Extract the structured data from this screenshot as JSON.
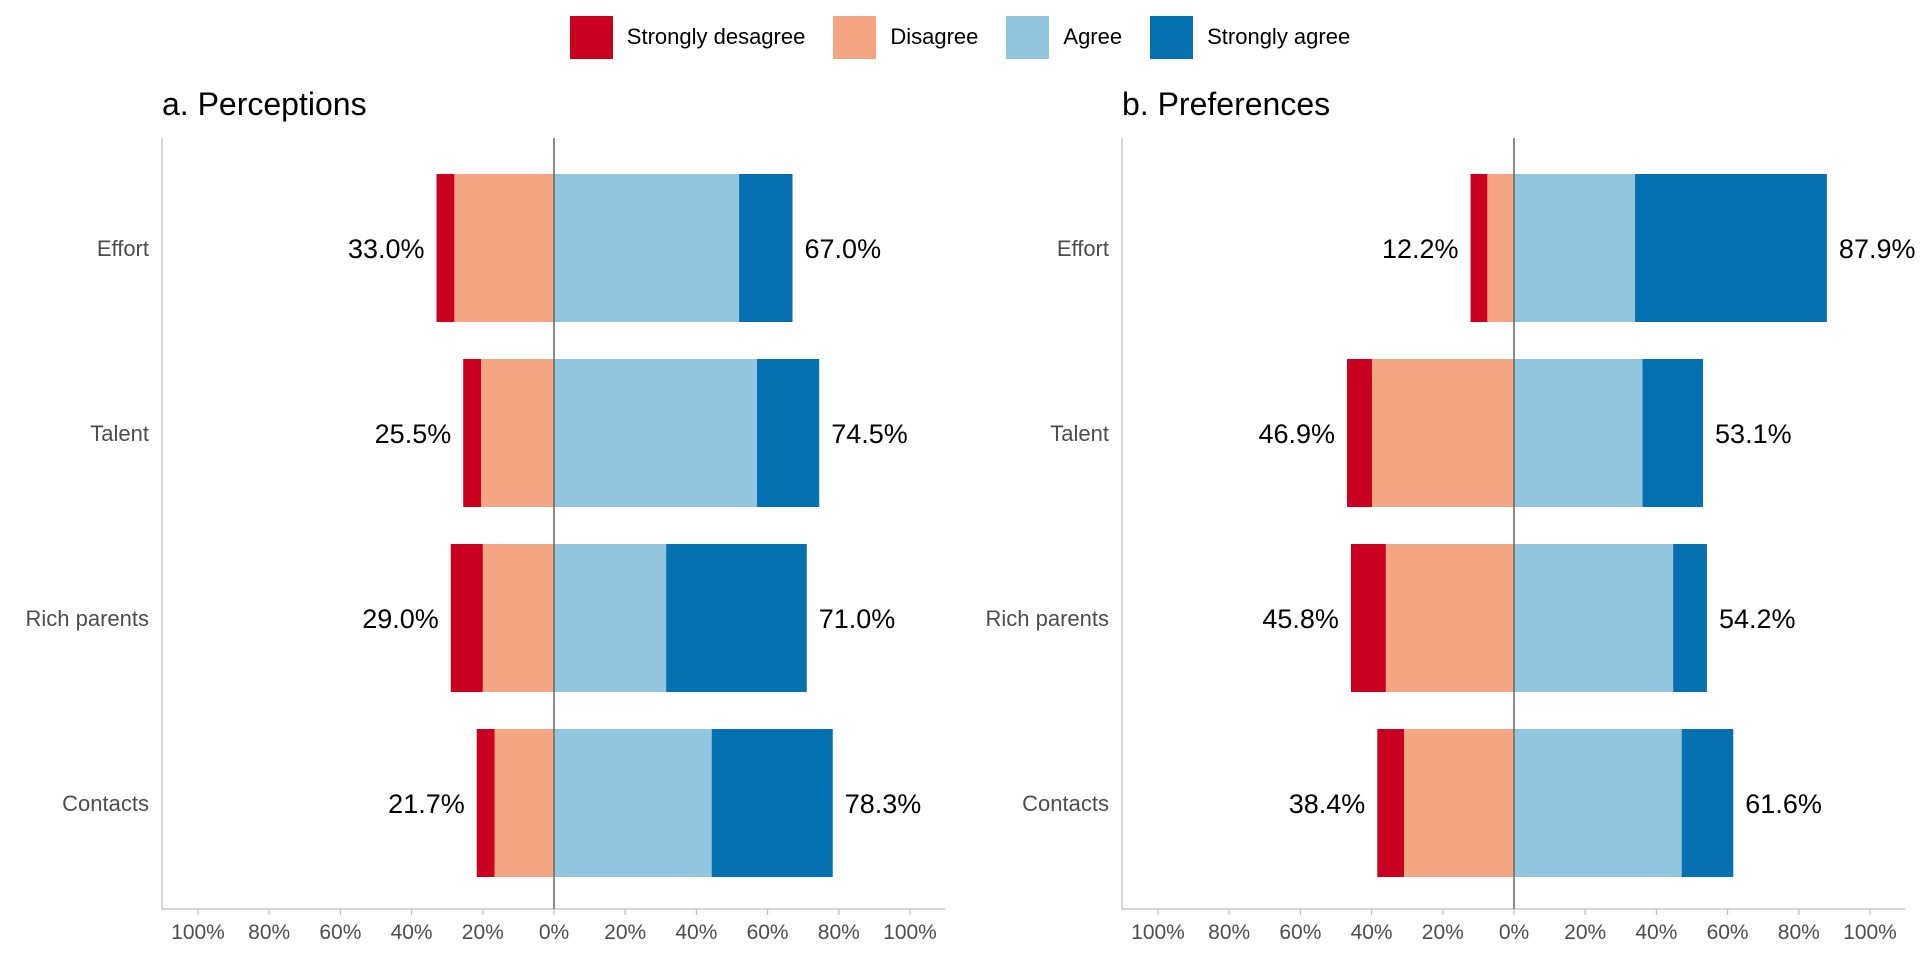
{
  "legend": [
    {
      "label": "Strongly desagree",
      "color": "#CA0020"
    },
    {
      "label": "Disagree",
      "color": "#F4A582"
    },
    {
      "label": "Agree",
      "color": "#92C5DE"
    },
    {
      "label": "Strongly agree",
      "color": "#0571B0"
    }
  ],
  "chart_data": [
    {
      "type": "bar",
      "orientation": "horizontal-diverging",
      "title": "a. Perceptions",
      "categories": [
        "Effort",
        "Talent",
        "Rich parents",
        "Contacts"
      ],
      "series": [
        {
          "name": "Strongly desagree",
          "color": "#CA0020",
          "values": [
            5.0,
            5.0,
            9.0,
            5.0
          ]
        },
        {
          "name": "Disagree",
          "color": "#F4A582",
          "values": [
            28.0,
            20.5,
            20.0,
            16.7
          ]
        },
        {
          "name": "Agree",
          "color": "#92C5DE",
          "values": [
            52.0,
            57.0,
            31.5,
            44.3
          ]
        },
        {
          "name": "Strongly agree",
          "color": "#0571B0",
          "values": [
            15.0,
            17.5,
            39.5,
            34.0
          ]
        }
      ],
      "disagree_totals": [
        "33.0%",
        "25.5%",
        "29.0%",
        "21.7%"
      ],
      "agree_totals": [
        "67.0%",
        "74.5%",
        "71.0%",
        "78.3%"
      ],
      "xlim": [
        -110,
        110
      ],
      "xticks": [
        -100,
        -80,
        -60,
        -40,
        -20,
        0,
        20,
        40,
        60,
        80,
        100
      ],
      "xtick_labels": [
        "100%",
        "80%",
        "60%",
        "40%",
        "20%",
        "0%",
        "20%",
        "40%",
        "60%",
        "80%",
        "100%"
      ]
    },
    {
      "type": "bar",
      "orientation": "horizontal-diverging",
      "title": "b. Preferences",
      "categories": [
        "Effort",
        "Talent",
        "Rich parents",
        "Contacts"
      ],
      "series": [
        {
          "name": "Strongly desagree",
          "color": "#CA0020",
          "values": [
            4.7,
            7.0,
            9.8,
            7.5
          ]
        },
        {
          "name": "Disagree",
          "color": "#F4A582",
          "values": [
            7.5,
            39.9,
            36.0,
            30.9
          ]
        },
        {
          "name": "Agree",
          "color": "#92C5DE",
          "values": [
            34.0,
            36.1,
            44.7,
            47.1
          ]
        },
        {
          "name": "Strongly agree",
          "color": "#0571B0",
          "values": [
            53.9,
            17.0,
            9.5,
            14.5
          ]
        }
      ],
      "disagree_totals": [
        "12.2%",
        "46.9%",
        "45.8%",
        "38.4%"
      ],
      "agree_totals": [
        "87.9%",
        "53.1%",
        "54.2%",
        "61.6%"
      ],
      "xlim": [
        -110,
        110
      ],
      "xticks": [
        -100,
        -80,
        -60,
        -40,
        -20,
        0,
        20,
        40,
        60,
        80,
        100
      ],
      "xtick_labels": [
        "100%",
        "80%",
        "60%",
        "40%",
        "20%",
        "0%",
        "20%",
        "40%",
        "60%",
        "80%",
        "100%"
      ]
    }
  ]
}
